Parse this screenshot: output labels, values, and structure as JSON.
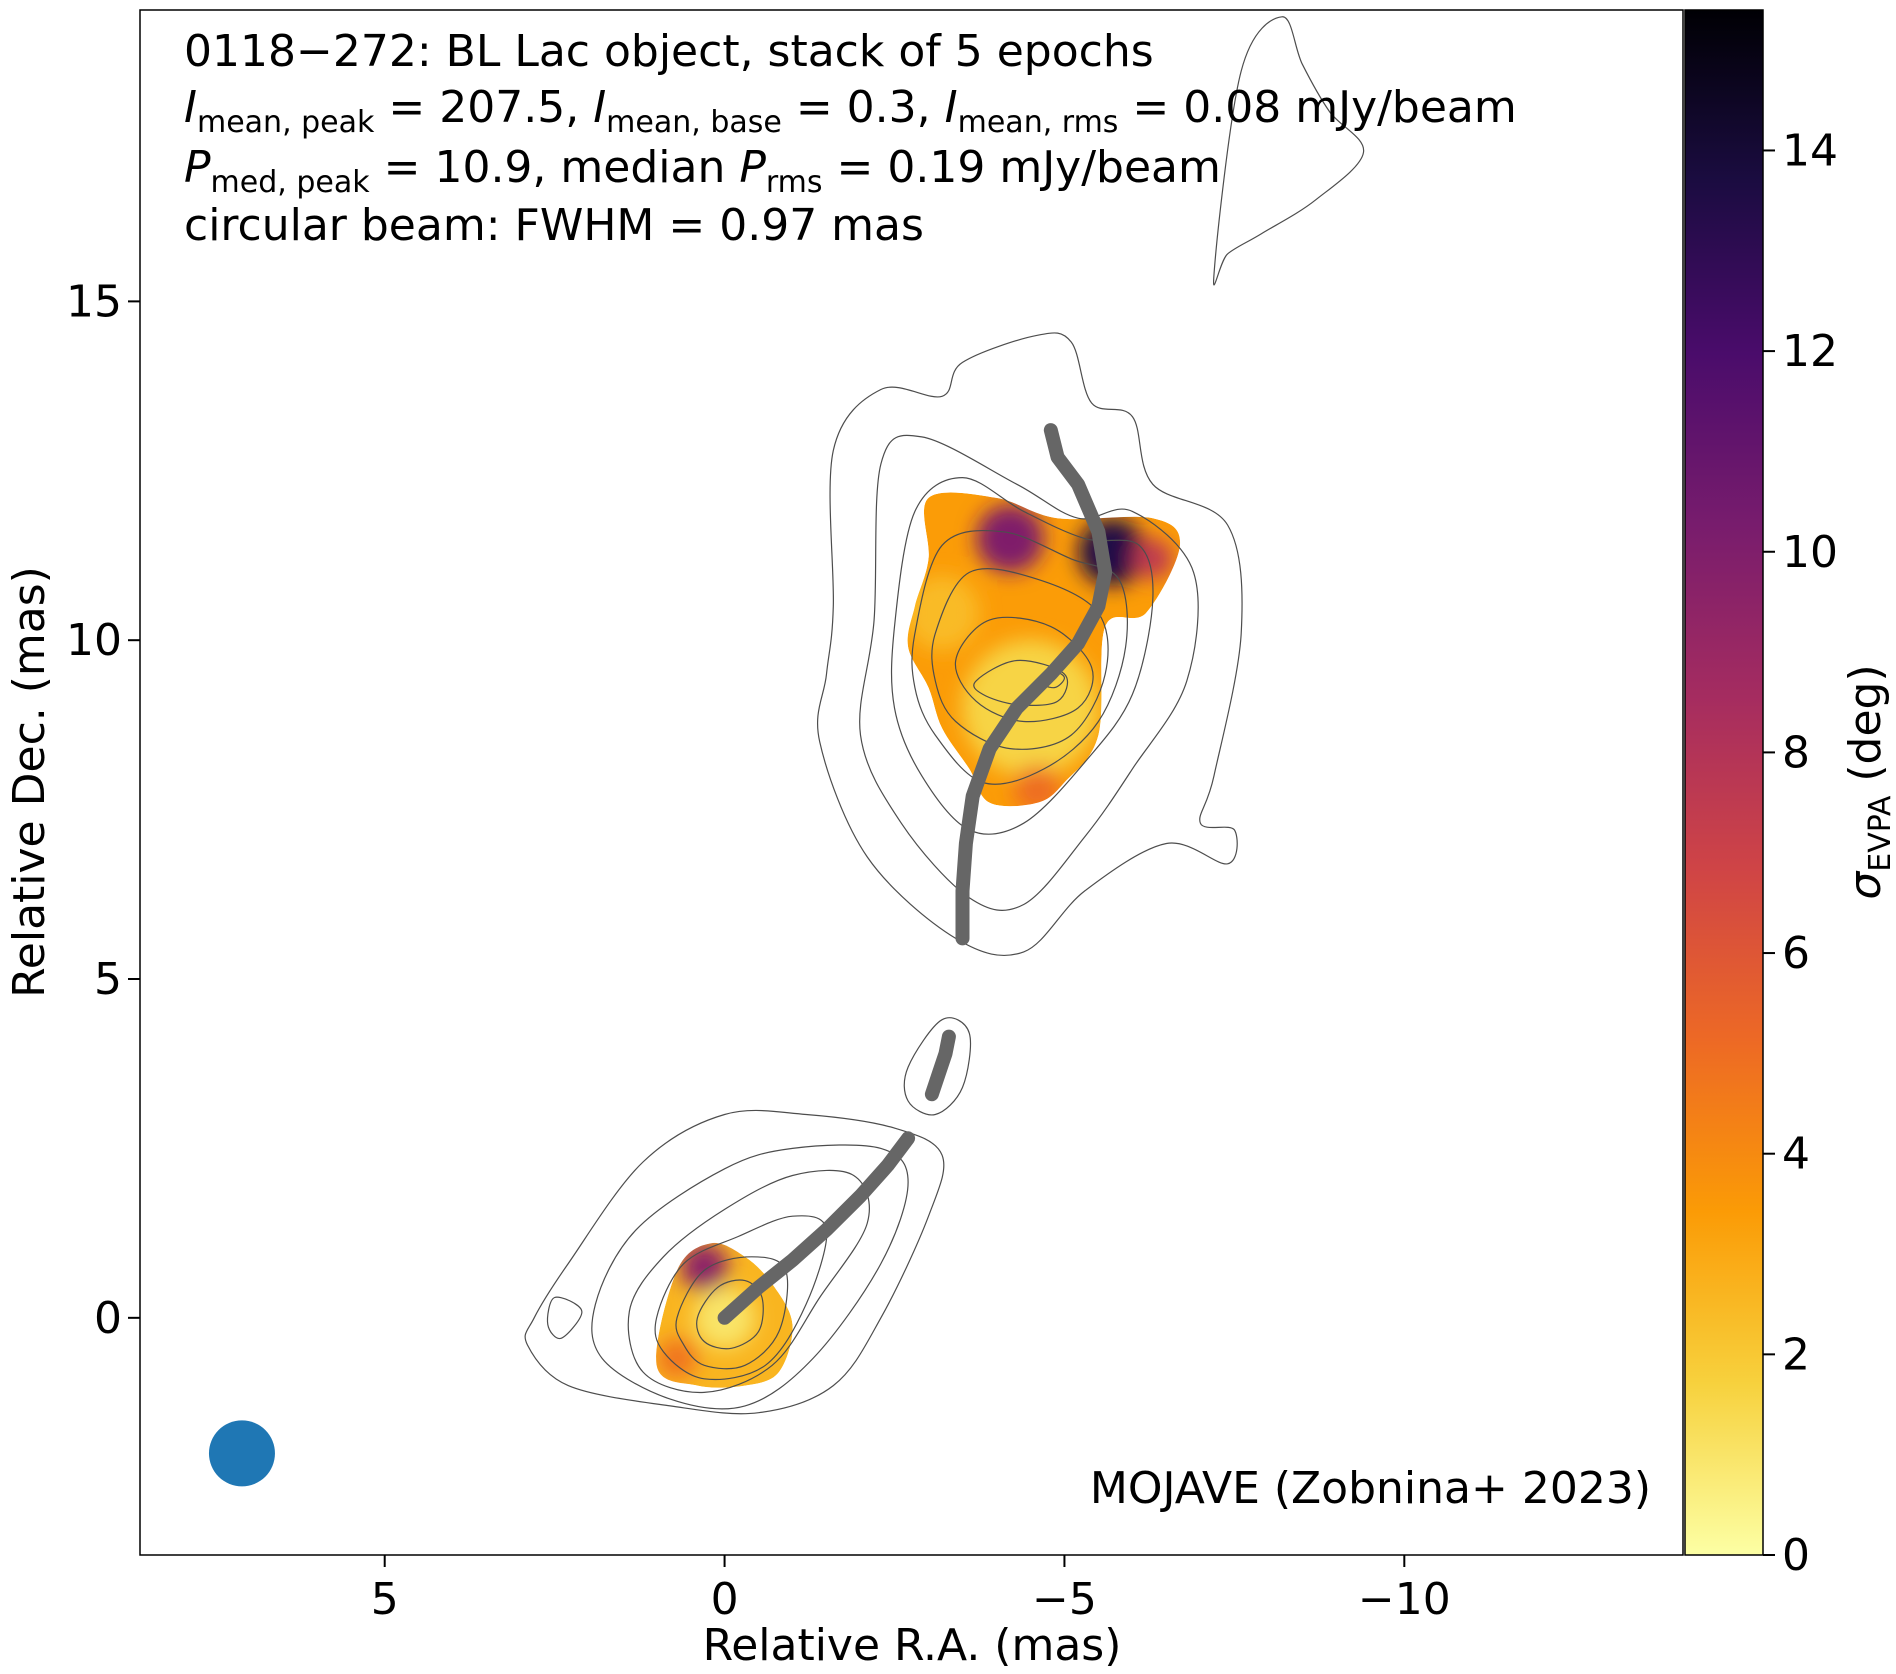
{
  "chart_data": {
    "type": "heatmap",
    "title_lines": [
      "0118−272: BL Lac object, stack of 5 epochs"
    ],
    "annotations": {
      "line2": {
        "i1_sym": "I",
        "i1_sub": "mean, peak",
        "i1_val": " = 207.5, ",
        "i2_sym": "I",
        "i2_sub": "mean, base",
        "i2_val": " = 0.3, ",
        "i3_sym": "I",
        "i3_sub": "mean, rms",
        "i3_val": " = 0.08 mJy/beam"
      },
      "line3": {
        "p1_sym": "P",
        "p1_sub": "med, peak",
        "p1_val": " = 10.9, median ",
        "p2_sym": "P",
        "p2_sub": "rms",
        "p2_val": " = 0.19 mJy/beam"
      },
      "line4": "circular beam: FWHM = 0.97 mas",
      "credit": "MOJAVE (Zobnina+ 2023)"
    },
    "xlabel": "Relative R.A. (mas)",
    "ylabel": "Relative Dec. (mas)",
    "xlim": [
      8.6,
      -14.1
    ],
    "ylim": [
      -3.5,
      19.3
    ],
    "x_ticks": [
      5,
      0,
      -5,
      -10
    ],
    "x_tick_labels": [
      "5",
      "0",
      "−5",
      "−10"
    ],
    "y_ticks": [
      0,
      5,
      10,
      15
    ],
    "y_tick_labels": [
      "0",
      "5",
      "10",
      "15"
    ],
    "colorbar": {
      "label_sym": "σ",
      "label_sub": "EVPA",
      "label_unit": " (deg)",
      "range": [
        0,
        15.4
      ],
      "ticks": [
        0,
        2,
        4,
        6,
        8,
        10,
        12,
        14
      ],
      "tick_labels": [
        "0",
        "2",
        "4",
        "6",
        "8",
        "10",
        "12",
        "14"
      ],
      "colormap": "inferno_r",
      "stops": [
        "#fcffa4",
        "#f7d13d",
        "#fb9b06",
        "#ed6925",
        "#cf4446",
        "#a52c60",
        "#781c6d",
        "#4a0c6b",
        "#1b0c41",
        "#000004"
      ]
    },
    "beam": {
      "x": 7.1,
      "y": -2.0,
      "fwhm_mas": 0.97,
      "color": "#1f77b4"
    },
    "ridge_line": {
      "color": "#666666",
      "segments": [
        [
          [
            0,
            0
          ],
          [
            -0.5,
            0.45
          ],
          [
            -1.0,
            0.85
          ],
          [
            -1.5,
            1.3
          ],
          [
            -2.0,
            1.8
          ],
          [
            -2.4,
            2.25
          ],
          [
            -2.7,
            2.65
          ]
        ],
        [
          [
            -3.05,
            3.3
          ],
          [
            -3.15,
            3.6
          ],
          [
            -3.25,
            3.9
          ],
          [
            -3.3,
            4.15
          ]
        ],
        [
          [
            -3.5,
            5.6
          ],
          [
            -3.5,
            6.3
          ],
          [
            -3.55,
            7.0
          ],
          [
            -3.65,
            7.7
          ],
          [
            -3.9,
            8.4
          ],
          [
            -4.3,
            9.0
          ],
          [
            -4.8,
            9.5
          ],
          [
            -5.2,
            9.95
          ],
          [
            -5.5,
            10.5
          ],
          [
            -5.6,
            11.0
          ],
          [
            -5.5,
            11.6
          ],
          [
            -5.2,
            12.3
          ],
          [
            -4.9,
            12.7
          ],
          [
            -4.8,
            13.1
          ]
        ]
      ]
    },
    "contours": [
      [
        [
          2.8,
          0.0
        ],
        [
          2.3,
          0.8
        ],
        [
          1.2,
          2.3
        ],
        [
          0.0,
          3.0
        ],
        [
          -1.2,
          3.0
        ],
        [
          -2.5,
          2.8
        ],
        [
          -3.2,
          2.4
        ],
        [
          -3.0,
          1.5
        ],
        [
          -2.3,
          0.0
        ],
        [
          -1.6,
          -1.0
        ],
        [
          -0.5,
          -1.4
        ],
        [
          0.8,
          -1.3
        ],
        [
          2.3,
          -1.0
        ],
        [
          2.9,
          -0.4
        ]
      ],
      [
        [
          1.9,
          0.2
        ],
        [
          1.3,
          1.3
        ],
        [
          0.0,
          2.2
        ],
        [
          -1.0,
          2.5
        ],
        [
          -2.3,
          2.5
        ],
        [
          -2.7,
          2.0
        ],
        [
          -2.3,
          0.8
        ],
        [
          -1.3,
          -0.6
        ],
        [
          -0.3,
          -1.3
        ],
        [
          0.8,
          -1.2
        ],
        [
          1.8,
          -0.6
        ]
      ],
      [
        [
          1.4,
          0.1
        ],
        [
          0.9,
          0.9
        ],
        [
          0.0,
          1.6
        ],
        [
          -1.0,
          2.1
        ],
        [
          -1.9,
          2.1
        ],
        [
          -2.1,
          1.4
        ],
        [
          -1.4,
          0.3
        ],
        [
          -0.7,
          -0.7
        ],
        [
          0.3,
          -1.1
        ],
        [
          1.2,
          -0.8
        ]
      ],
      [
        [
          1.0,
          0.0
        ],
        [
          0.6,
          0.8
        ],
        [
          -0.2,
          1.2
        ],
        [
          -1.0,
          1.5
        ],
        [
          -1.5,
          1.3
        ],
        [
          -1.2,
          0.2
        ],
        [
          -0.6,
          -0.7
        ],
        [
          0.3,
          -0.9
        ],
        [
          0.9,
          -0.5
        ]
      ],
      [
        [
          0.7,
          0.0
        ],
        [
          0.3,
          0.7
        ],
        [
          -0.4,
          0.9
        ],
        [
          -0.9,
          0.7
        ],
        [
          -0.8,
          -0.2
        ],
        [
          -0.3,
          -0.7
        ],
        [
          0.3,
          -0.7
        ],
        [
          0.6,
          -0.4
        ]
      ],
      [
        [
          0.4,
          0.0
        ],
        [
          0.1,
          0.45
        ],
        [
          -0.3,
          0.55
        ],
        [
          -0.55,
          0.3
        ],
        [
          -0.5,
          -0.2
        ],
        [
          -0.1,
          -0.45
        ],
        [
          0.3,
          -0.35
        ]
      ],
      [
        [
          -2.7,
          3.7
        ],
        [
          -3.2,
          4.4
        ],
        [
          -3.6,
          4.2
        ],
        [
          -3.5,
          3.4
        ],
        [
          -3.1,
          3.0
        ],
        [
          -2.7,
          3.2
        ]
      ],
      [
        [
          -1.6,
          10.5
        ],
        [
          -1.6,
          12.8
        ],
        [
          -2.3,
          13.7
        ],
        [
          -3.2,
          13.6
        ],
        [
          -3.5,
          14.1
        ],
        [
          -4.6,
          14.5
        ],
        [
          -5.1,
          14.4
        ],
        [
          -5.4,
          13.5
        ],
        [
          -6.0,
          13.3
        ],
        [
          -6.3,
          12.3
        ],
        [
          -7.4,
          11.7
        ],
        [
          -7.6,
          10.1
        ],
        [
          -7.2,
          8.0
        ],
        [
          -7.0,
          7.3
        ],
        [
          -7.5,
          7.2
        ],
        [
          -7.4,
          6.7
        ],
        [
          -6.5,
          7.0
        ],
        [
          -5.3,
          6.3
        ],
        [
          -4.4,
          5.4
        ],
        [
          -3.4,
          5.6
        ],
        [
          -2.1,
          6.8
        ],
        [
          -1.4,
          8.5
        ],
        [
          -1.5,
          9.5
        ]
      ],
      [
        [
          -2.2,
          10.3
        ],
        [
          -2.3,
          12.6
        ],
        [
          -2.9,
          13.0
        ],
        [
          -4.3,
          12.3
        ],
        [
          -5.2,
          11.8
        ],
        [
          -6.0,
          11.9
        ],
        [
          -6.9,
          11.0
        ],
        [
          -6.8,
          9.4
        ],
        [
          -6.0,
          8.1
        ],
        [
          -5.3,
          7.1
        ],
        [
          -4.4,
          6.1
        ],
        [
          -3.6,
          6.2
        ],
        [
          -2.6,
          7.3
        ],
        [
          -2.0,
          8.6
        ]
      ],
      [
        [
          -2.5,
          10.2
        ],
        [
          -2.8,
          11.9
        ],
        [
          -3.5,
          12.4
        ],
        [
          -4.4,
          11.9
        ],
        [
          -5.3,
          11.5
        ],
        [
          -6.1,
          11.4
        ],
        [
          -6.3,
          10.6
        ],
        [
          -6.0,
          9.2
        ],
        [
          -5.3,
          8.2
        ],
        [
          -4.4,
          7.3
        ],
        [
          -3.6,
          7.2
        ],
        [
          -2.9,
          8.0
        ],
        [
          -2.5,
          9.0
        ]
      ],
      [
        [
          -2.8,
          10.1
        ],
        [
          -3.2,
          11.4
        ],
        [
          -4.1,
          11.6
        ],
        [
          -5.1,
          11.2
        ],
        [
          -5.8,
          10.9
        ],
        [
          -5.9,
          9.9
        ],
        [
          -5.5,
          8.8
        ],
        [
          -4.7,
          8.1
        ],
        [
          -3.8,
          7.9
        ],
        [
          -3.1,
          8.6
        ],
        [
          -2.8,
          9.3
        ]
      ],
      [
        [
          -3.1,
          10.1
        ],
        [
          -3.6,
          11.0
        ],
        [
          -4.6,
          10.9
        ],
        [
          -5.5,
          10.4
        ],
        [
          -5.6,
          9.5
        ],
        [
          -5.1,
          8.6
        ],
        [
          -4.2,
          8.4
        ],
        [
          -3.4,
          8.8
        ],
        [
          -3.1,
          9.4
        ]
      ],
      [
        [
          -3.4,
          9.7
        ],
        [
          -3.9,
          10.3
        ],
        [
          -4.8,
          10.2
        ],
        [
          -5.4,
          9.6
        ],
        [
          -5.2,
          9.0
        ],
        [
          -4.4,
          8.8
        ],
        [
          -3.7,
          9.1
        ]
      ],
      [
        [
          -3.7,
          9.4
        ],
        [
          -4.3,
          9.7
        ],
        [
          -5.0,
          9.5
        ],
        [
          -4.9,
          9.1
        ],
        [
          -4.3,
          9.05
        ],
        [
          -3.8,
          9.2
        ]
      ],
      [
        [
          -4.6,
          9.4
        ],
        [
          -4.8,
          9.55
        ],
        [
          -5.0,
          9.45
        ],
        [
          -4.85,
          9.3
        ]
      ],
      [
        [
          -7.2,
          15.4
        ],
        [
          -7.6,
          18.4
        ],
        [
          -8.2,
          19.2
        ],
        [
          -8.5,
          18.5
        ],
        [
          -8.9,
          17.8
        ],
        [
          -9.4,
          17.2
        ],
        [
          -8.7,
          16.5
        ],
        [
          -7.9,
          16.0
        ],
        [
          -7.4,
          15.7
        ]
      ],
      [
        [
          2.4,
          -0.3
        ],
        [
          2.1,
          0.1
        ],
        [
          2.5,
          0.3
        ],
        [
          2.6,
          -0.1
        ]
      ]
    ],
    "pol_regions": [
      {
        "outline": [
          [
            1.0,
            -0.7
          ],
          [
            0.7,
            0.7
          ],
          [
            0.2,
            1.1
          ],
          [
            -0.3,
            0.9
          ],
          [
            -0.7,
            0.5
          ],
          [
            -1.0,
            -0.1
          ],
          [
            -0.8,
            -0.8
          ],
          [
            -0.3,
            -1.0
          ],
          [
            0.4,
            -1.0
          ]
        ],
        "spots": [
          {
            "x": 0.0,
            "y": 0.0,
            "r": 0.45,
            "value": 1.0
          },
          {
            "x": 0.3,
            "y": 0.75,
            "r": 0.35,
            "value": 9.5
          },
          {
            "x": 0.7,
            "y": -0.6,
            "r": 0.3,
            "value": 4.8
          }
        ],
        "base_value": 2.6
      },
      {
        "outline": [
          [
            -3.0,
            12.1
          ],
          [
            -4.0,
            12.1
          ],
          [
            -4.9,
            11.8
          ],
          [
            -6.3,
            11.8
          ],
          [
            -6.7,
            11.4
          ],
          [
            -6.2,
            10.4
          ],
          [
            -5.6,
            10.2
          ],
          [
            -5.5,
            8.6
          ],
          [
            -5.0,
            7.9
          ],
          [
            -4.6,
            7.6
          ],
          [
            -3.9,
            7.6
          ],
          [
            -3.6,
            8.1
          ],
          [
            -3.2,
            8.7
          ],
          [
            -3.0,
            9.3
          ],
          [
            -2.7,
            9.9
          ],
          [
            -2.8,
            10.5
          ],
          [
            -3.0,
            11.2
          ]
        ],
        "spots": [
          {
            "x": -4.5,
            "y": 9.0,
            "r": 1.0,
            "value": 1.6
          },
          {
            "x": -3.2,
            "y": 10.4,
            "r": 0.55,
            "value": 2.4
          },
          {
            "x": -4.2,
            "y": 11.5,
            "r": 0.5,
            "value": 10.0
          },
          {
            "x": -5.7,
            "y": 11.3,
            "r": 0.5,
            "value": 13.5
          },
          {
            "x": -6.3,
            "y": 11.2,
            "r": 0.3,
            "value": 7.5
          },
          {
            "x": -4.6,
            "y": 7.8,
            "r": 0.35,
            "value": 5.0
          }
        ],
        "base_value": 3.4
      }
    ]
  }
}
